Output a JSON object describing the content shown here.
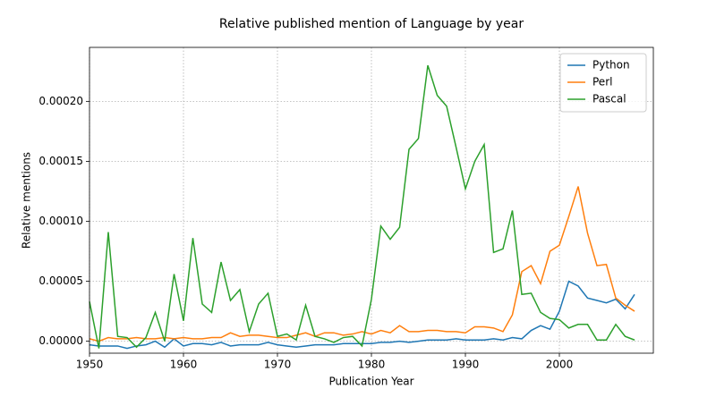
{
  "chart_data": {
    "type": "line",
    "title": "Relative published mention of Language by year",
    "xlabel": "Publication Year",
    "ylabel": "Relative mentions",
    "x": [
      1950,
      1951,
      1952,
      1953,
      1954,
      1955,
      1956,
      1957,
      1958,
      1959,
      1960,
      1961,
      1962,
      1963,
      1964,
      1965,
      1966,
      1967,
      1968,
      1969,
      1970,
      1971,
      1972,
      1973,
      1974,
      1975,
      1976,
      1977,
      1978,
      1979,
      1980,
      1981,
      1982,
      1983,
      1984,
      1985,
      1986,
      1987,
      1988,
      1989,
      1990,
      1991,
      1992,
      1993,
      1994,
      1995,
      1996,
      1997,
      1998,
      1999,
      2000,
      2001,
      2002,
      2003,
      2004,
      2005,
      2006,
      2007,
      2008
    ],
    "series": [
      {
        "name": "Python",
        "color": "#1f77b4",
        "values": [
          -3e-06,
          -4e-06,
          -4e-06,
          -4e-06,
          -6e-06,
          -4e-06,
          -3e-06,
          0,
          -5e-06,
          2e-06,
          -4e-06,
          -2e-06,
          -2e-06,
          -3e-06,
          -1e-06,
          -4e-06,
          -3e-06,
          -3e-06,
          -3e-06,
          -1e-06,
          -3e-06,
          -4e-06,
          -5e-06,
          -4e-06,
          -3e-06,
          -3e-06,
          -3e-06,
          -2e-06,
          -2e-06,
          -2e-06,
          -2e-06,
          -1e-06,
          -1e-06,
          0,
          -1e-06,
          0,
          1e-06,
          1e-06,
          1e-06,
          2e-06,
          1e-06,
          1e-06,
          1e-06,
          2e-06,
          1e-06,
          3e-06,
          2e-06,
          9e-06,
          1.3e-05,
          1e-05,
          2.5e-05,
          5e-05,
          4.6e-05,
          3.6e-05,
          3.4e-05,
          3.2e-05,
          3.5e-05,
          2.7e-05,
          3.9e-05
        ]
      },
      {
        "name": "Perl",
        "color": "#ff7f0e",
        "values": [
          2e-06,
          0,
          3e-06,
          2e-06,
          2e-06,
          3e-06,
          2e-06,
          2e-06,
          3e-06,
          2e-06,
          3e-06,
          2e-06,
          2e-06,
          3e-06,
          3e-06,
          7e-06,
          4e-06,
          5e-06,
          5e-06,
          4e-06,
          3e-06,
          3e-06,
          5e-06,
          7e-06,
          4e-06,
          7e-06,
          7e-06,
          5e-06,
          6e-06,
          8e-06,
          6e-06,
          9e-06,
          7e-06,
          1.3e-05,
          8e-06,
          8e-06,
          9e-06,
          9e-06,
          8e-06,
          8e-06,
          7e-06,
          1.2e-05,
          1.2e-05,
          1.1e-05,
          8e-06,
          2.2e-05,
          5.8e-05,
          6.3e-05,
          4.8e-05,
          7.5e-05,
          8e-05,
          0.000104,
          0.000129,
          9e-05,
          6.3e-05,
          6.4e-05,
          3.6e-05,
          3e-05,
          2.5e-05
        ]
      },
      {
        "name": "Pascal",
        "color": "#2ca02c",
        "values": [
          3.3e-05,
          -6e-06,
          9.1e-05,
          4e-06,
          3e-06,
          -5e-06,
          3e-06,
          2.4e-05,
          0,
          5.6e-05,
          1.7e-05,
          8.6e-05,
          3.1e-05,
          2.4e-05,
          6.6e-05,
          3.4e-05,
          4.3e-05,
          8e-06,
          3.1e-05,
          4e-05,
          4e-06,
          6e-06,
          1e-06,
          3e-05,
          4e-06,
          2e-06,
          -1e-06,
          3e-06,
          4e-06,
          -4e-06,
          3.5e-05,
          9.6e-05,
          8.5e-05,
          9.5e-05,
          0.00016,
          0.000169,
          0.00023,
          0.000205,
          0.000196,
          0.000162,
          0.000127,
          0.00015,
          0.000164,
          7.4e-05,
          7.7e-05,
          0.000109,
          3.9e-05,
          4e-05,
          2.4e-05,
          1.9e-05,
          1.8e-05,
          1.1e-05,
          1.4e-05,
          1.4e-05,
          1e-06,
          1e-06,
          1.4e-05,
          4e-06,
          1e-06
        ]
      }
    ],
    "xlim": [
      1950,
      2010
    ],
    "xticks": [
      1950,
      1960,
      1970,
      1980,
      1990,
      2000
    ],
    "ylim": [
      -1e-05,
      0.000245
    ],
    "yticks": [
      {
        "value": 0,
        "label": "0.00000"
      },
      {
        "value": 5e-05,
        "label": "0.00005"
      },
      {
        "value": 0.0001,
        "label": "0.00010"
      },
      {
        "value": 0.00015,
        "label": "0.00015"
      },
      {
        "value": 0.0002,
        "label": "0.00020"
      }
    ],
    "grid": true,
    "legend": "upper right"
  }
}
